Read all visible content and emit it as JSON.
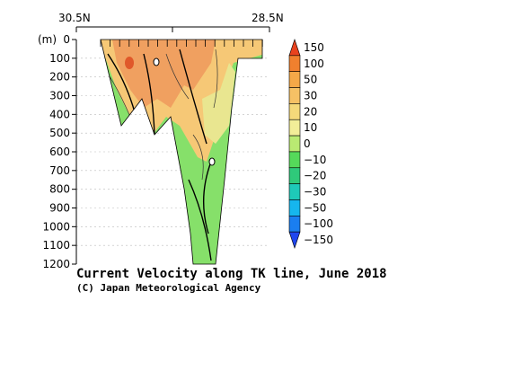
{
  "chart_data": {
    "type": "heatmap",
    "top_axis": {
      "left_label": "30.5N",
      "right_label": "28.5N"
    },
    "y_axis": {
      "unit_label": "(m)",
      "range": [
        0,
        1200
      ],
      "ticks": [
        "0",
        "100",
        "200",
        "300",
        "400",
        "500",
        "600",
        "700",
        "800",
        "900",
        "1000",
        "1100",
        "1200"
      ]
    },
    "colorbar": {
      "labels": [
        "150",
        "100",
        "50",
        "30",
        "20",
        "10",
        "0",
        "−10",
        "−20",
        "−30",
        "−50",
        "−100",
        "−150"
      ],
      "colors": [
        "#e8421e",
        "#f0802e",
        "#f5a848",
        "#f6c165",
        "#f5d97a",
        "#f2ee98",
        "#b9ea72",
        "#55d95a",
        "#2fc97a",
        "#1ec9b8",
        "#16b6ee",
        "#1a7ef0",
        "#1f46ee"
      ]
    },
    "title": "Current Velocity along TK line, June 2018",
    "credit": "(C) Japan Meteorological Agency",
    "section_colors": {
      "strong_north": "#f0a060",
      "north": "#f6c876",
      "weak": "#e9e690",
      "south": "#86e06a",
      "core": "#e0582a"
    }
  }
}
